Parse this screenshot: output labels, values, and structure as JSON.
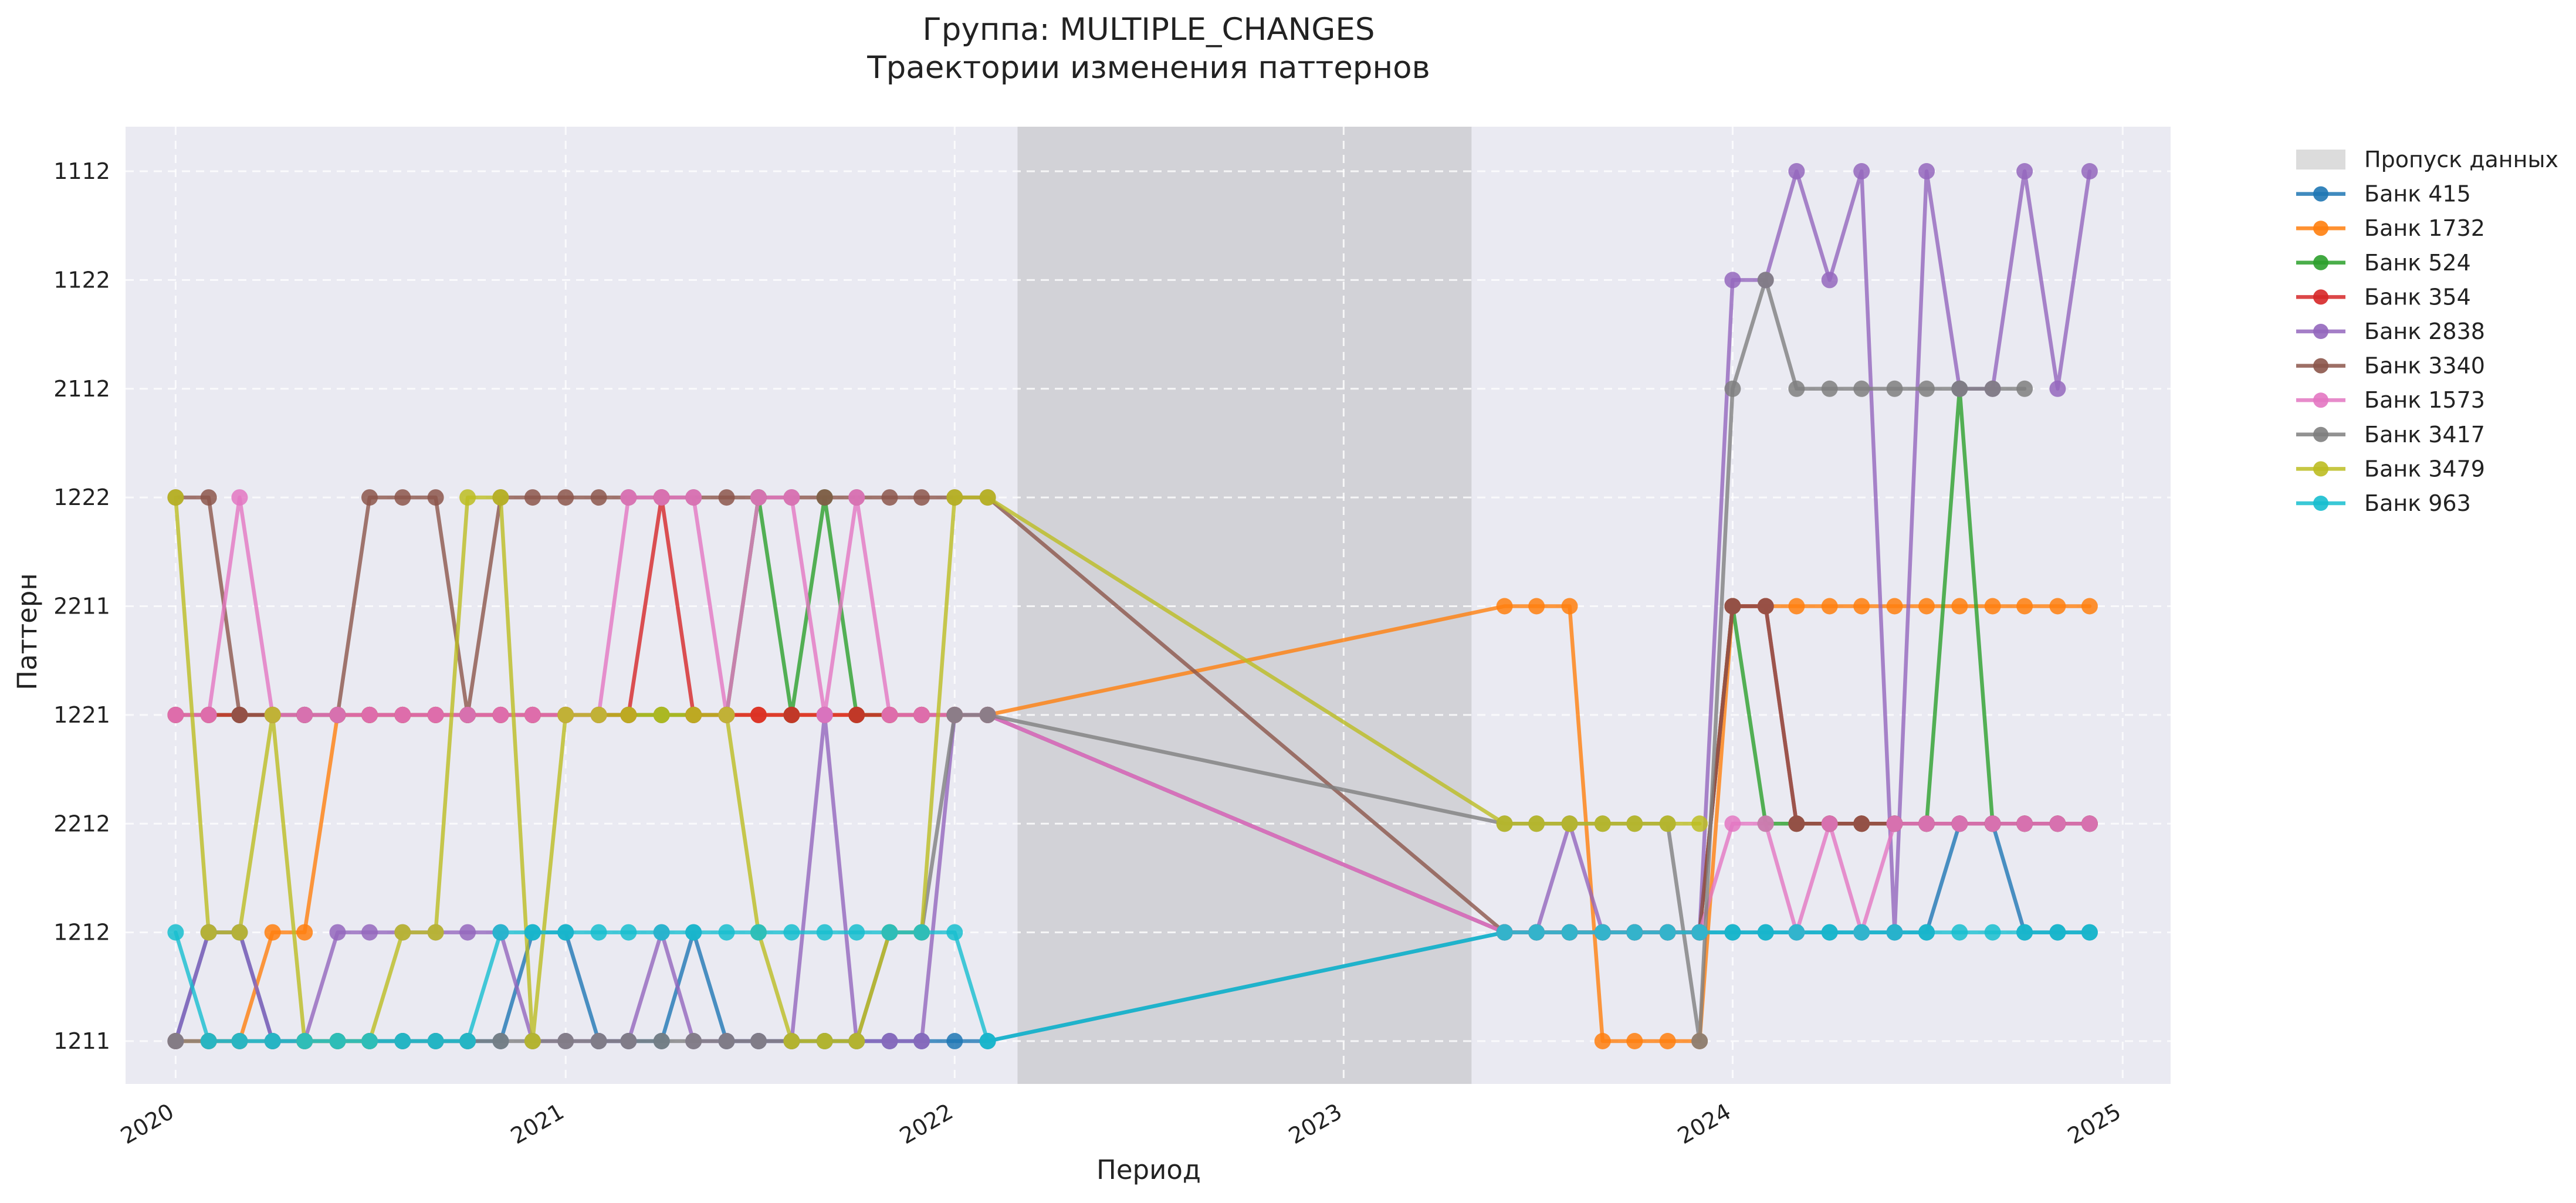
{
  "chart_data": {
    "type": "line",
    "title": "Группа: MULTIPLE_CHANGES",
    "subtitle": "Траектории изменения паттернов",
    "xlabel": "Период",
    "ylabel": "Паттерн",
    "categories": [
      "1211",
      "1212",
      "2212",
      "1221",
      "2211",
      "1222",
      "2112",
      "1122",
      "1112"
    ],
    "x_ticks": [
      "2020",
      "2021",
      "2022",
      "2023",
      "2024",
      "2025"
    ],
    "xlim": [
      "2019-11-15",
      "2025-02-15"
    ],
    "gap": {
      "label": "Пропуск данных",
      "start": "2022-03-01",
      "end": "2023-05-01"
    },
    "grid": true,
    "legend_position": "outside-right",
    "background": "#eaeaf2",
    "dates": [
      "2020-01",
      "2020-02",
      "2020-03",
      "2020-04",
      "2020-05",
      "2020-06",
      "2020-07",
      "2020-08",
      "2020-09",
      "2020-10",
      "2020-11",
      "2020-12",
      "2021-01",
      "2021-02",
      "2021-03",
      "2021-04",
      "2021-05",
      "2021-06",
      "2021-07",
      "2021-08",
      "2021-09",
      "2021-10",
      "2021-11",
      "2021-12",
      "2022-01",
      "2022-02",
      "2023-06",
      "2023-07",
      "2023-08",
      "2023-09",
      "2023-10",
      "2023-11",
      "2023-12",
      "2024-01",
      "2024-02",
      "2024-03",
      "2024-04",
      "2024-05",
      "2024-06",
      "2024-07",
      "2024-08",
      "2024-09",
      "2024-10",
      "2024-11",
      "2024-12"
    ],
    "series": [
      {
        "name": "Банк 415",
        "color": "#1f77b4",
        "values": [
          "1211",
          "1212",
          "1212",
          "1211",
          "1211",
          "1211",
          "1211",
          "1211",
          "1211",
          "1211",
          "1211",
          "1212",
          "1212",
          "1211",
          "1211",
          "1211",
          "1212",
          "1211",
          "1211",
          "1211",
          "1211",
          "1211",
          "1211",
          "1211",
          "1211",
          "1211",
          "1212",
          "1212",
          "1212",
          "1212",
          "1212",
          "1212",
          "1212",
          "1212",
          "1212",
          "1212",
          "1212",
          "1212",
          "1212",
          "1212",
          "2212",
          "2212",
          "1212",
          "1212",
          "1212"
        ]
      },
      {
        "name": "Банк 1732",
        "color": "#ff7f0e",
        "values": [
          "1211",
          "1211",
          "1211",
          "1212",
          "1212",
          "1221",
          "1221",
          "1221",
          "1221",
          "1221",
          "1221",
          "1221",
          "1221",
          "1221",
          "1221",
          "1221",
          "1221",
          "1221",
          "1221",
          "1221",
          "1221",
          "1221",
          "1221",
          "1221",
          "1221",
          "1221",
          "2211",
          "2211",
          "2211",
          "1211",
          "1211",
          "1211",
          "1211",
          "2211",
          "2211",
          "2211",
          "2211",
          "2211",
          "2211",
          "2211",
          "2211",
          "2211",
          "2211",
          "2211",
          "2211"
        ]
      },
      {
        "name": "Банк 524",
        "color": "#2ca02c",
        "values": [
          "1221",
          "1221",
          "1221",
          "1221",
          "1221",
          "1221",
          "1221",
          "1221",
          "1221",
          "1221",
          "1221",
          "1221",
          "1221",
          "1221",
          "1221",
          "1221",
          "1221",
          "1221",
          "1222",
          "1221",
          "1222",
          "1221",
          "1221",
          "1221",
          "1221",
          "1221",
          "1212",
          "1212",
          "1212",
          "1212",
          "1212",
          "1212",
          "1212",
          "2211",
          "2212",
          "2212",
          "2212",
          "2212",
          "2212",
          "2212",
          "2112",
          "2212",
          "2212",
          "2212",
          "2212"
        ]
      },
      {
        "name": "Банк 354",
        "color": "#d62728",
        "values": [
          "1221",
          "1221",
          "1221",
          "1221",
          "1221",
          "1221",
          "1221",
          "1221",
          "1221",
          "1221",
          "1221",
          "1221",
          "1221",
          "1221",
          "1221",
          "1222",
          "1221",
          "1221",
          "1221",
          "1221",
          "1221",
          "1221",
          "1221",
          "1221",
          "1221",
          "1221",
          "1212",
          "1212",
          "1212",
          "1212",
          "1212",
          "1212",
          "1212",
          "2211",
          "2211",
          "2212",
          "2212",
          "2212",
          "2212",
          "2212",
          "2212",
          "2212",
          "2212",
          "2212",
          "2212"
        ]
      },
      {
        "name": "Банк 2838",
        "color": "#9467bd",
        "values": [
          "1211",
          "1212",
          "1212",
          "1211",
          "1211",
          "1212",
          "1212",
          "1212",
          "1212",
          "1212",
          "1212",
          "1211",
          "1211",
          "1211",
          "1211",
          "1212",
          "1211",
          "1211",
          "1211",
          "1211",
          "1221",
          "1211",
          "1211",
          "1211",
          "1221",
          "1221",
          "1212",
          "1212",
          "2212",
          "1212",
          "1212",
          "1212",
          "1212",
          "1122",
          "1122",
          "1112",
          "1122",
          "1112",
          "1212",
          "1112",
          "2112",
          "2112",
          "1112",
          "2112",
          "1112"
        ]
      },
      {
        "name": "Банк 3340",
        "color": "#8c564b",
        "values": [
          "1222",
          "1222",
          "1221",
          "1221",
          "1221",
          "1221",
          "1222",
          "1222",
          "1222",
          "1221",
          "1222",
          "1222",
          "1222",
          "1222",
          "1222",
          "1222",
          "1222",
          "1222",
          "1222",
          "1222",
          "1222",
          "1222",
          "1222",
          "1222",
          "1222",
          "1222",
          "1212",
          "1212",
          "1212",
          "1212",
          "1212",
          "1212",
          "1212",
          "2211",
          "2211",
          "2212",
          "2212",
          "2212",
          "2212",
          "2212",
          "2212",
          "2212",
          "2212",
          "2212",
          "2212"
        ]
      },
      {
        "name": "Банк 1573",
        "color": "#e377c2",
        "values": [
          "1221",
          "1221",
          "1222",
          "1221",
          "1221",
          "1221",
          "1221",
          "1221",
          "1221",
          "1221",
          "1221",
          "1221",
          "1221",
          "1221",
          "1222",
          "1222",
          "1222",
          "1221",
          "1222",
          "1222",
          "1221",
          "1222",
          "1221",
          "1221",
          "1221",
          "1221",
          "1212",
          "1212",
          "1212",
          "1212",
          "1212",
          "1212",
          "1212",
          "2212",
          "2212",
          "1212",
          "2212",
          "1212",
          "2212",
          "2212",
          "2212",
          "2212",
          "2212",
          "2212",
          "2212"
        ]
      },
      {
        "name": "Банк 3417",
        "color": "#7f7f7f",
        "values": [
          "1211",
          "1211",
          "1211",
          "1211",
          "1211",
          "1211",
          "1211",
          "1211",
          "1211",
          "1211",
          "1211",
          "1211",
          "1211",
          "1211",
          "1211",
          "1211",
          "1211",
          "1211",
          "1211",
          "1211",
          "1211",
          "1211",
          "1212",
          "1212",
          "1221",
          "1221",
          "2212",
          "2212",
          "2212",
          "2212",
          "2212",
          "2212",
          "1211",
          "2112",
          "1122",
          "2112",
          "2112",
          "2112",
          "2112",
          "2112",
          "2112",
          "2112",
          "2112",
          "",
          ""
        ]
      },
      {
        "name": "Банк 3479",
        "color": "#bcbd22",
        "values": [
          "1222",
          "1212",
          "1212",
          "1221",
          "1211",
          "1211",
          "1211",
          "1212",
          "1212",
          "1222",
          "1222",
          "1211",
          "1221",
          "1221",
          "1221",
          "1221",
          "1221",
          "1221",
          "1212",
          "1211",
          "1211",
          "1211",
          "1212",
          "1212",
          "1222",
          "1222",
          "2212",
          "2212",
          "2212",
          "2212",
          "2212",
          "2212",
          "2212",
          "",
          "",
          "",
          "",
          "",
          "",
          "",
          "",
          "",
          "",
          "",
          ""
        ]
      },
      {
        "name": "Банк 963",
        "color": "#17becf",
        "values": [
          "1212",
          "1211",
          "1211",
          "1211",
          "1211",
          "1211",
          "1211",
          "1211",
          "1211",
          "1211",
          "1212",
          "1212",
          "1212",
          "1212",
          "1212",
          "1212",
          "1212",
          "1212",
          "1212",
          "1212",
          "1212",
          "1212",
          "1212",
          "1212",
          "1212",
          "1211",
          "1212",
          "1212",
          "1212",
          "1212",
          "1212",
          "1212",
          "1212",
          "1212",
          "1212",
          "1212",
          "1212",
          "1212",
          "1212",
          "1212",
          "1212",
          "1212",
          "1212",
          "1212",
          "1212"
        ]
      }
    ]
  }
}
